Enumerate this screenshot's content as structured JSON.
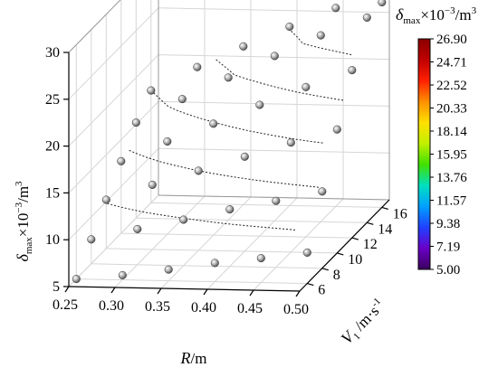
{
  "chart_data": {
    "type": "surface3d",
    "title": "",
    "x_axis": {
      "label": "R/m",
      "symbol": "R",
      "unit": "/m",
      "range": [
        0.25,
        0.5
      ],
      "ticks": [
        "0.25",
        "0.30",
        "0.35",
        "0.40",
        "0.45",
        "0.50"
      ]
    },
    "y_axis": {
      "label": "V1 /m·s-1",
      "symbol": "V",
      "subscript": "1",
      "unit": " /m·s",
      "unit_sup": "-1",
      "range": [
        5,
        17
      ],
      "ticks": [
        "6",
        "8",
        "10",
        "12",
        "14",
        "16"
      ]
    },
    "z_axis": {
      "label": "δmax×10-3/m3",
      "symbol": "δ",
      "subscript": "max",
      "mid": "×10",
      "exp": "−3",
      "unit": "/m",
      "unit_sup": "3",
      "range": [
        5,
        30
      ],
      "ticks": [
        "5",
        "10",
        "15",
        "20",
        "25",
        "30"
      ]
    },
    "colorbar": {
      "title_symbol": "δ",
      "title_sub": "max",
      "title_mid": "×10",
      "title_exp": "−3",
      "title_unit": "/m",
      "title_unit_sup": "3",
      "ticks": [
        "26.90",
        "24.71",
        "22.52",
        "20.33",
        "18.14",
        "15.95",
        "13.76",
        "11.57",
        "9.38",
        "7.19",
        "5.00"
      ],
      "min": 5.0,
      "max": 26.9,
      "colors": [
        "#3a005c",
        "#6a00c8",
        "#2040ff",
        "#00a0ff",
        "#00e0c0",
        "#40e000",
        "#c0f000",
        "#ffe000",
        "#ff9000",
        "#ff2000",
        "#c00000",
        "#8a0000"
      ]
    },
    "grid": true,
    "points": [
      {
        "R": 0.25,
        "V": 6,
        "d": 5.0
      },
      {
        "R": 0.3,
        "V": 6,
        "d": 5.5
      },
      {
        "R": 0.35,
        "V": 6,
        "d": 6.2
      },
      {
        "R": 0.4,
        "V": 6,
        "d": 7.0
      },
      {
        "R": 0.45,
        "V": 6,
        "d": 7.6
      },
      {
        "R": 0.5,
        "V": 6,
        "d": 8.3
      },
      {
        "R": 0.25,
        "V": 8,
        "d": 7.6
      },
      {
        "R": 0.3,
        "V": 8,
        "d": 8.8
      },
      {
        "R": 0.35,
        "V": 8,
        "d": 9.9
      },
      {
        "R": 0.4,
        "V": 8,
        "d": 11.1
      },
      {
        "R": 0.45,
        "V": 8,
        "d": 12.1
      },
      {
        "R": 0.5,
        "V": 8,
        "d": 13.2
      },
      {
        "R": 0.25,
        "V": 10,
        "d": 10.2
      },
      {
        "R": 0.3,
        "V": 10,
        "d": 11.9
      },
      {
        "R": 0.35,
        "V": 10,
        "d": 13.5
      },
      {
        "R": 0.4,
        "V": 10,
        "d": 15.1
      },
      {
        "R": 0.45,
        "V": 10,
        "d": 16.7
      },
      {
        "R": 0.5,
        "V": 10,
        "d": 18.2
      },
      {
        "R": 0.25,
        "V": 12,
        "d": 12.7
      },
      {
        "R": 0.3,
        "V": 12,
        "d": 14.9
      },
      {
        "R": 0.35,
        "V": 12,
        "d": 16.9
      },
      {
        "R": 0.4,
        "V": 12,
        "d": 19.0
      },
      {
        "R": 0.45,
        "V": 12,
        "d": 21.0
      },
      {
        "R": 0.5,
        "V": 12,
        "d": 22.9
      },
      {
        "R": 0.25,
        "V": 14,
        "d": 15.2
      },
      {
        "R": 0.3,
        "V": 14,
        "d": 17.8
      },
      {
        "R": 0.35,
        "V": 14,
        "d": 20.2
      },
      {
        "R": 0.4,
        "V": 14,
        "d": 22.6
      },
      {
        "R": 0.45,
        "V": 14,
        "d": 24.9
      },
      {
        "R": 0.5,
        "V": 14,
        "d": 26.9
      },
      {
        "R": 0.25,
        "V": 16,
        "d": 17.0
      },
      {
        "R": 0.3,
        "V": 16,
        "d": 19.6
      },
      {
        "R": 0.35,
        "V": 16,
        "d": 21.9
      },
      {
        "R": 0.4,
        "V": 16,
        "d": 24.1
      },
      {
        "R": 0.45,
        "V": 16,
        "d": 26.2
      },
      {
        "R": 0.5,
        "V": 16,
        "d": 26.9
      }
    ]
  }
}
